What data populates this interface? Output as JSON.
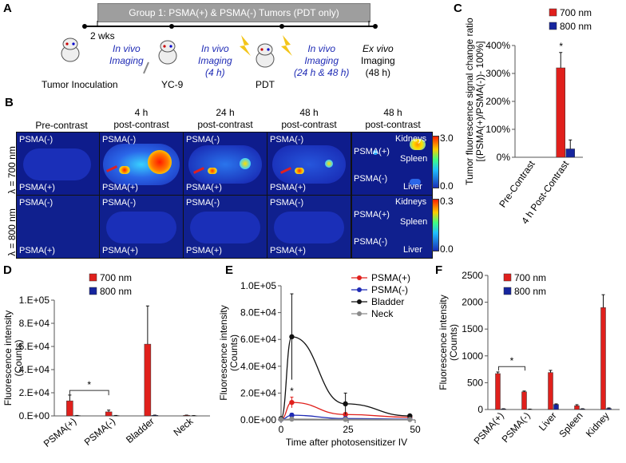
{
  "panelA": {
    "letter": "A",
    "group_label": "Group 1: PSMA(+) & PSMA(-) Tumors (PDT only)",
    "wks_label": "2 wks",
    "steps": [
      {
        "line1": "In vivo",
        "line2": "Imaging",
        "italic": true
      },
      {
        "line1": "In vivo",
        "line2": "Imaging",
        "line3": "(4 h)",
        "italic": true
      },
      {
        "line1": "In vivo",
        "line2": "Imaging",
        "line3": "(24 h & 48 h)",
        "italic": true
      },
      {
        "line1": "Ex vivo",
        "line2": "Imaging",
        "line3": "(48 h)",
        "italic": false
      }
    ],
    "labels": {
      "tumor": "Tumor Inoculation",
      "yc9": "YC-9",
      "pdt": "PDT"
    }
  },
  "panelB": {
    "letter": "B",
    "columns": [
      {
        "line1": "Pre-contrast",
        "line2": ""
      },
      {
        "line1": "4 h",
        "line2": "post-contrast"
      },
      {
        "line1": "24 h",
        "line2": "post-contrast"
      },
      {
        "line1": "48 h",
        "line2": "post-contrast"
      },
      {
        "line1": "48 h",
        "line2": "post-contrast"
      }
    ],
    "row_labels": [
      "λ = 700 nm",
      "λ = 800 nm"
    ],
    "cell_top": "PSMA(-)",
    "cell_bottom": "PSMA(+)",
    "exvivo_labels": {
      "psma_pos": "PSMA(+)",
      "psma_neg": "PSMA(-)",
      "kidneys": "Kidneys",
      "spleen": "Spleen",
      "liver": "Liver"
    },
    "colorbar_700": {
      "max": "3.0",
      "min": "0.0"
    },
    "colorbar_800": {
      "max": "0.3",
      "min": "0.0"
    }
  },
  "panelC": {
    "letter": "C",
    "chart_data": {
      "type": "bar",
      "ylabel_line1": "Tumor fluorescence  signal change ratio",
      "ylabel_line2": "[(PSMA(+)/PSMA(-))- 100%]",
      "categories": [
        "Pre-Contrast",
        "4 h Post-Contrast"
      ],
      "series": [
        {
          "name": "700 nm",
          "color": "#e0201c",
          "values": [
            0,
            320
          ],
          "errors": [
            0,
            55
          ]
        },
        {
          "name": "800 nm",
          "color": "#16259e",
          "values": [
            0,
            30
          ],
          "errors": [
            0,
            32
          ]
        }
      ],
      "ylim": [
        0,
        400
      ],
      "yticks": [
        "0%",
        "100%",
        "200%",
        "300%",
        "400%"
      ],
      "annotation": "*"
    }
  },
  "panelD": {
    "letter": "D",
    "chart_data": {
      "type": "bar",
      "ylabel_line1": "Fluorescence intensity",
      "ylabel_line2": "(Counts)",
      "categories": [
        "PSMA(+)",
        "PSMA(-)",
        "Bladder",
        "Neck"
      ],
      "series": [
        {
          "name": "700 nm",
          "color": "#e0201c",
          "values": [
            13000,
            3500,
            62000,
            500
          ],
          "errors": [
            5000,
            1500,
            33000,
            200
          ]
        },
        {
          "name": "800 nm",
          "color": "#16259e",
          "values": [
            300,
            300,
            500,
            200
          ],
          "errors": [
            100,
            100,
            200,
            100
          ]
        }
      ],
      "ylim": [
        0,
        100000
      ],
      "yticks": [
        "0.E+00",
        "2.E+04",
        "4.E+04",
        "6.E+04",
        "8.E+04",
        "1.E+05"
      ],
      "annotation": "*"
    }
  },
  "panelE": {
    "letter": "E",
    "chart_data": {
      "type": "line",
      "ylabel_line1": "Fluorescence intensity",
      "ylabel_line2": "(Counts)",
      "xlabel": "Time after photosensitizer IV",
      "x": [
        0,
        4,
        24,
        48
      ],
      "xlim": [
        0,
        50
      ],
      "xticks": [
        "0",
        "25",
        "50"
      ],
      "ylim": [
        0,
        100000
      ],
      "yticks": [
        "0.0E+00",
        "2.0E+04",
        "4.0E+04",
        "6.0E+04",
        "8.0E+04",
        "1.0E+05"
      ],
      "series": [
        {
          "name": "PSMA(+)",
          "color": "#e0201c",
          "values": [
            500,
            13000,
            4000,
            2000
          ],
          "errors": [
            0,
            4000,
            1500,
            800
          ]
        },
        {
          "name": "PSMA(-)",
          "color": "#1f2bb5",
          "values": [
            300,
            3500,
            1000,
            600
          ],
          "errors": [
            0,
            1500,
            500,
            300
          ]
        },
        {
          "name": "Bladder",
          "color": "#111111",
          "values": [
            1000,
            62000,
            12000,
            3000
          ],
          "errors": [
            0,
            32000,
            8000,
            1000
          ]
        },
        {
          "name": "Neck",
          "color": "#8a8a8a",
          "values": [
            300,
            600,
            400,
            300
          ],
          "errors": [
            0,
            200,
            150,
            100
          ]
        }
      ],
      "annotation": "*"
    }
  },
  "panelF": {
    "letter": "F",
    "chart_data": {
      "type": "bar",
      "ylabel_line1": "Fluorescence intensity",
      "ylabel_line2": "(Counts)",
      "categories": [
        "PSMA(+)",
        "PSMA(-)",
        "Liver",
        "Spleen",
        "Kidney"
      ],
      "series": [
        {
          "name": "700 nm",
          "color": "#e0201c",
          "values": [
            670,
            330,
            690,
            70,
            1900
          ],
          "errors": [
            30,
            15,
            40,
            20,
            240
          ]
        },
        {
          "name": "800 nm",
          "color": "#16259e",
          "values": [
            10,
            5,
            95,
            10,
            20
          ],
          "errors": [
            5,
            3,
            10,
            5,
            10
          ]
        }
      ],
      "ylim": [
        0,
        2500
      ],
      "yticks": [
        "0",
        "500",
        "1000",
        "1500",
        "2000",
        "2500"
      ],
      "annotation": "*"
    }
  }
}
